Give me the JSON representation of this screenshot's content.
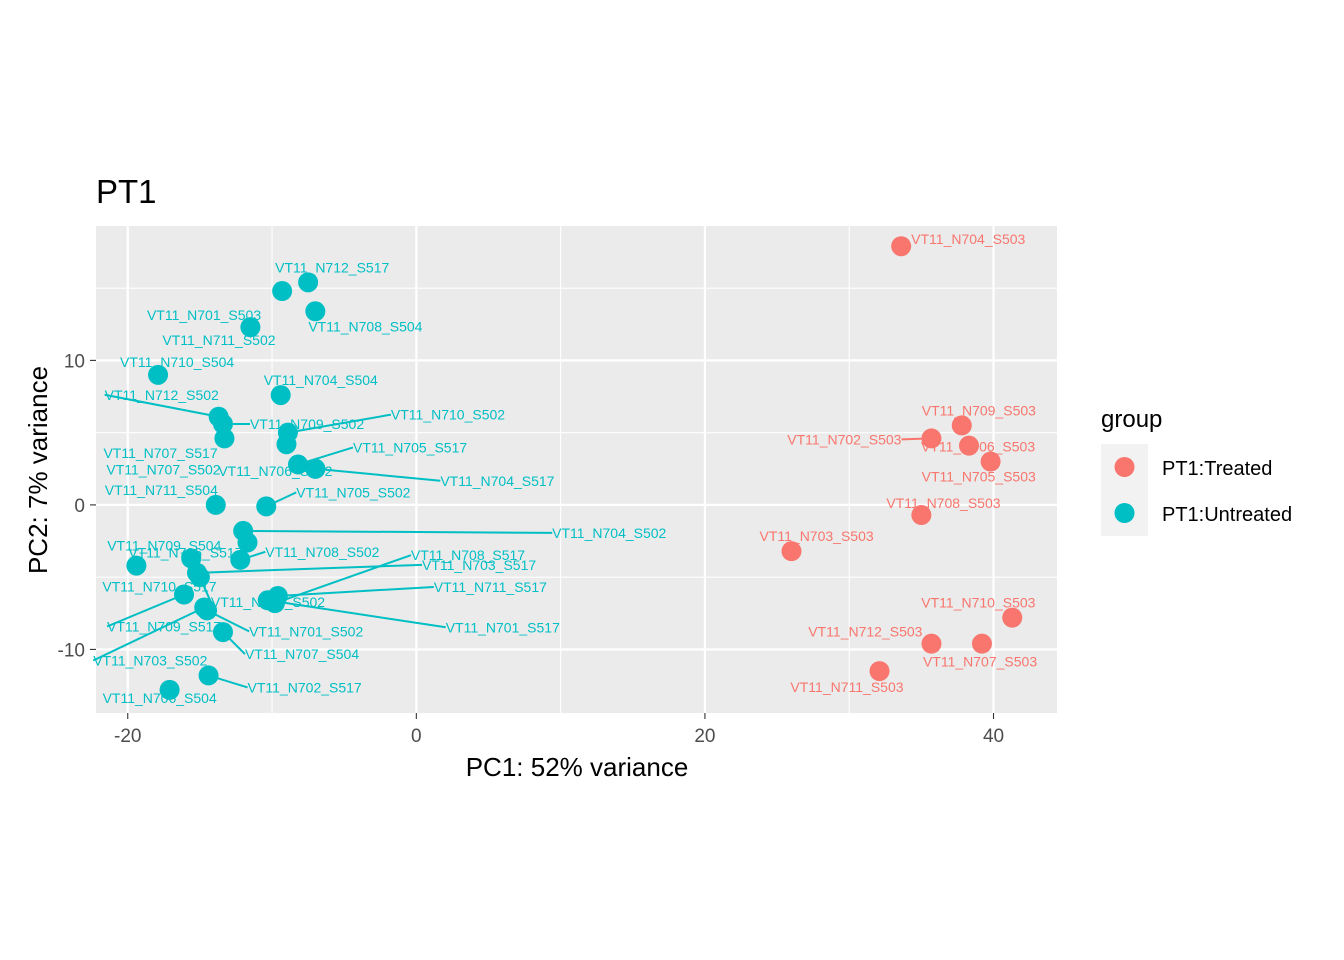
{
  "chart_data": {
    "type": "scatter",
    "title": "PT1",
    "xlabel": "PC1: 52% variance",
    "ylabel": "PC2: 7% variance",
    "xlim": [
      -22.2,
      44.4
    ],
    "ylim": [
      -14.4,
      19.3
    ],
    "x_ticks": [
      -20,
      0,
      20,
      40
    ],
    "x_tick_labels": [
      "-20",
      "0",
      "20",
      "40"
    ],
    "y_ticks": [
      -10,
      0,
      10
    ],
    "y_tick_labels": [
      "-10",
      "0",
      "10"
    ],
    "grid": true,
    "legend": {
      "title": "group",
      "position": "right"
    },
    "series": [
      {
        "name": "PT1:Treated",
        "color": "#F8766D",
        "points": [
          {
            "label": "VT11_N704_S503",
            "x": 33.6,
            "y": 17.9
          },
          {
            "label": "VT11_N709_S503",
            "x": 37.8,
            "y": 5.5
          },
          {
            "label": "VT11_N702_S503",
            "x": 35.7,
            "y": 4.6
          },
          {
            "label": "VT11_N706_S503",
            "x": 38.3,
            "y": 4.1
          },
          {
            "label": "VT11_N705_S503",
            "x": 39.8,
            "y": 3.0
          },
          {
            "label": "VT11_N708_S503",
            "x": 35.0,
            "y": -0.7
          },
          {
            "label": "VT11_N703_S503",
            "x": 26.0,
            "y": -3.2
          },
          {
            "label": "VT11_N710_S503",
            "x": 41.3,
            "y": -7.8
          },
          {
            "label": "VT11_N712_S503",
            "x": 35.7,
            "y": -9.6
          },
          {
            "label": "VT11_N707_S503",
            "x": 39.2,
            "y": -9.6
          },
          {
            "label": "VT11_N711_S503",
            "x": 32.1,
            "y": -11.5
          }
        ]
      },
      {
        "name": "PT1:Untreated",
        "color": "#00BFC4",
        "points": [
          {
            "label": "VT11_N712_S517",
            "x": -7.5,
            "y": 15.4
          },
          {
            "label": "VT11_N701_S503",
            "x": -9.3,
            "y": 14.8
          },
          {
            "label": "VT11_N708_S504",
            "x": -7.0,
            "y": 13.4
          },
          {
            "label": "VT11_N711_S502",
            "x": -11.5,
            "y": 12.3
          },
          {
            "label": "VT11_N710_S504",
            "x": -17.9,
            "y": 9.0
          },
          {
            "label": "VT11_N704_S504",
            "x": -9.4,
            "y": 7.6
          },
          {
            "label": "VT11_N712_S502",
            "x": -13.7,
            "y": 6.1
          },
          {
            "label": "VT11_N709_S502",
            "x": -13.4,
            "y": 5.6
          },
          {
            "label": "VT11_N710_S502",
            "x": -8.9,
            "y": 5.0
          },
          {
            "label": "VT11_N707_S502",
            "x": -13.3,
            "y": 4.6
          },
          {
            "label": "VT11_N707_S517",
            "x": -9.0,
            "y": 4.2
          },
          {
            "label": "VT11_N705_S517",
            "x": -8.2,
            "y": 2.8
          },
          {
            "label": "VT11_N706_S502",
            "x": -7.0,
            "y": 2.5
          },
          {
            "label": "VT11_N704_S517",
            "x": -7.0,
            "y": 2.5
          },
          {
            "label": "VT11_N705_S502",
            "x": -10.4,
            "y": -0.1
          },
          {
            "label": "VT11_N711_S504",
            "x": -13.9,
            "y": 0.0
          },
          {
            "label": "VT11_N704_S502",
            "x": -12.0,
            "y": -1.8
          },
          {
            "label": "VT11_N706_S517",
            "x": -11.7,
            "y": -2.6
          },
          {
            "label": "VT11_N708_S502",
            "x": -12.2,
            "y": -3.8
          },
          {
            "label": "VT11_N709_S504",
            "x": -15.6,
            "y": -3.7
          },
          {
            "label": "VT11_N710_S517",
            "x": -19.4,
            "y": -4.2
          },
          {
            "label": "VT11_N702_S502",
            "x": -15.0,
            "y": -5.0
          },
          {
            "label": "VT11_N703_S517",
            "x": -15.2,
            "y": -4.7
          },
          {
            "label": "VT11_N709_S517",
            "x": -16.1,
            "y": -6.2
          },
          {
            "label": "VT11_N711_S517",
            "x": -9.6,
            "y": -6.3
          },
          {
            "label": "VT11_N703_S502",
            "x": -14.7,
            "y": -7.1
          },
          {
            "label": "VT11_N701_S502",
            "x": -14.5,
            "y": -7.3
          },
          {
            "label": "VT11_N701_S517",
            "x": -10.3,
            "y": -6.6
          },
          {
            "label": "VT11_N708_S517",
            "x": -9.8,
            "y": -6.8
          },
          {
            "label": "VT11_N707_S504",
            "x": -13.4,
            "y": -8.8
          },
          {
            "label": "VT11_N702_S517",
            "x": -14.4,
            "y": -11.8
          },
          {
            "label": "VT11_N706_S504",
            "x": -17.1,
            "y": -12.8
          }
        ]
      }
    ]
  }
}
